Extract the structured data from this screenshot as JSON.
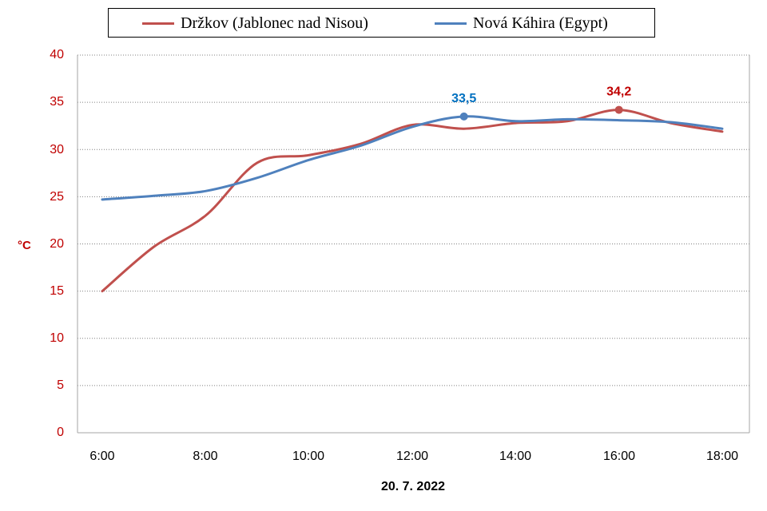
{
  "chart_data": {
    "type": "line",
    "title": "",
    "xlabel": "20. 7. 2022",
    "ylabel": "°C",
    "ylim": [
      0,
      40
    ],
    "yticks": [
      "0",
      "5",
      "10",
      "15",
      "20",
      "25",
      "30",
      "35",
      "40"
    ],
    "xticks": [
      "6:00",
      "8:00",
      "10:00",
      "12:00",
      "14:00",
      "16:00",
      "18:00"
    ],
    "grid": "horizontal-dotted",
    "legend": "top-center",
    "series": [
      {
        "name": "Držkov (Jablonec nad Nisou)",
        "color": "#c0504d",
        "x": [
          6,
          7,
          8,
          9,
          10,
          11,
          12,
          13,
          14,
          15,
          16,
          17,
          18
        ],
        "y": [
          15.0,
          19.7,
          23.0,
          28.6,
          29.4,
          30.6,
          32.6,
          32.2,
          32.8,
          33.0,
          34.2,
          32.8,
          31.9
        ],
        "annotation": {
          "x": 16,
          "y": 34.2,
          "label": "34,2",
          "color": "#c00000"
        }
      },
      {
        "name": "Nová Káhira (Egypt)",
        "color": "#4f81bd",
        "x": [
          6,
          7,
          8,
          9,
          10,
          11,
          12,
          13,
          14,
          15,
          16,
          17,
          18
        ],
        "y": [
          24.7,
          25.1,
          25.6,
          27.0,
          28.9,
          30.4,
          32.4,
          33.5,
          33.0,
          33.2,
          33.1,
          32.9,
          32.2
        ],
        "annotation": {
          "x": 13,
          "y": 33.5,
          "label": "33,5",
          "color": "#0070c0"
        }
      }
    ]
  }
}
